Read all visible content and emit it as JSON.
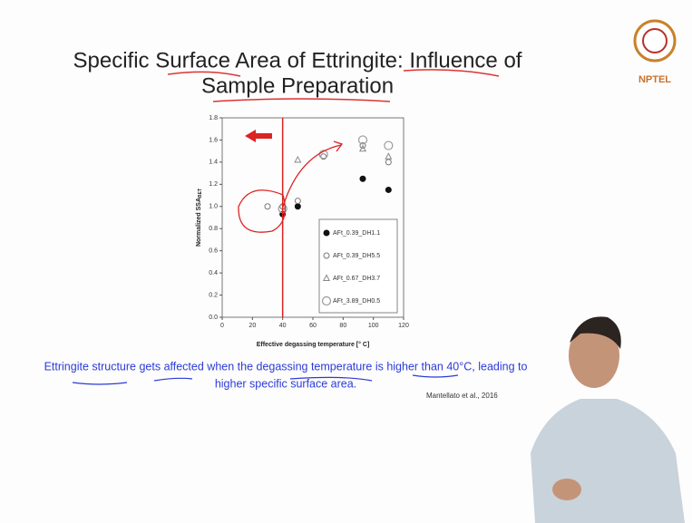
{
  "slide": {
    "title_line1": "Specific Surface Area of Ettringite: Influence of",
    "title_line2": "Sample Preparation",
    "logo_text": "NPTEL",
    "caption_line1": "Ettringite structure gets affected when the degassing temperature is higher than 40°C, leading to",
    "caption_line2": "higher specific surface area.",
    "citation": "Mantellato et al., 2016"
  },
  "chart_data": {
    "type": "scatter",
    "x_label": "Effective degassing temperature [° C]",
    "y_label": "Normalized SSA",
    "y_label_sub": "BET",
    "xlim": [
      0,
      120
    ],
    "xticks": [
      0,
      20,
      40,
      60,
      80,
      100,
      120
    ],
    "ylim": [
      0,
      1.8
    ],
    "yticks": [
      {
        "value": 0,
        "label": "0.0"
      },
      0.2,
      0.4,
      0.6,
      0.8,
      {
        "value": 1,
        "label": "1.0"
      },
      1.2,
      1.4,
      1.6,
      1.8
    ],
    "legend": "lower right",
    "series": [
      {
        "name": "AFt_0.39_DH1.1",
        "color": "#111111",
        "marker": "filled-circle",
        "x": [
          40,
          50,
          93,
          110
        ],
        "values": [
          0.93,
          1.0,
          1.25,
          1.15
        ]
      },
      {
        "name": "AFt_0.39_DH5.5",
        "color": "#777777",
        "marker": "open-circle",
        "x": [
          30,
          40,
          50,
          67,
          93,
          110
        ],
        "values": [
          1.0,
          1.0,
          1.05,
          1.45,
          1.55,
          1.4
        ]
      },
      {
        "name": "AFt_0.67_DH3.7",
        "color": "#888888",
        "marker": "triangle",
        "x": [
          50,
          93,
          110
        ],
        "values": [
          1.42,
          1.52,
          1.45
        ]
      },
      {
        "name": "AFt_3.89_DH0.5",
        "color": "#999999",
        "marker": "large-open-circle",
        "x": [
          40,
          67,
          93,
          110
        ],
        "values": [
          0.98,
          1.47,
          1.6,
          1.55
        ]
      }
    ]
  }
}
